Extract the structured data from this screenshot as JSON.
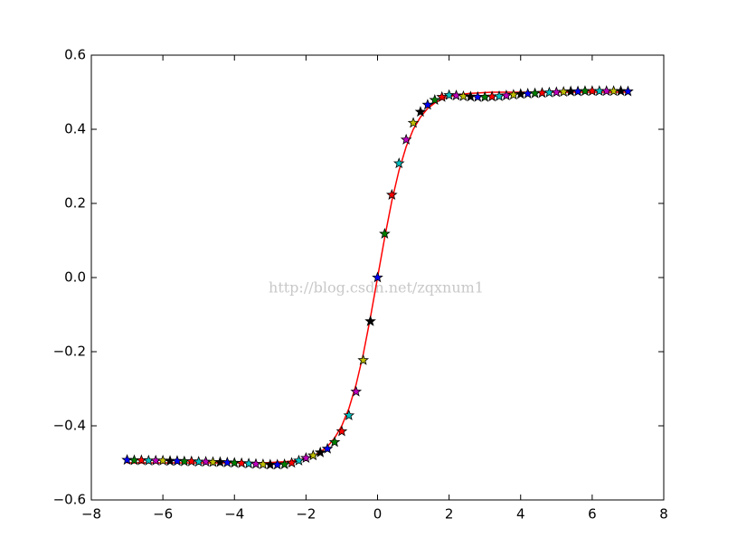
{
  "chart_data": {
    "type": "line",
    "watermark": "http://blog.csdn.net/zqxnum1",
    "x": [
      -7,
      -6.8,
      -6.6,
      -6.4,
      -6.2,
      -6,
      -5.8,
      -5.6,
      -5.4,
      -5.2,
      -5,
      -4.8,
      -4.6,
      -4.4,
      -4.2,
      -4,
      -3.8,
      -3.6,
      -3.4,
      -3.2,
      -3,
      -2.8,
      -2.6,
      -2.4,
      -2.2,
      -2,
      -1.8,
      -1.6,
      -1.4,
      -1.2,
      -1,
      -0.8,
      -0.6,
      -0.4,
      -0.2,
      0,
      0.2,
      0.4,
      0.6,
      0.8,
      1,
      1.2,
      1.4,
      1.6,
      1.8,
      2,
      2.2,
      2.4,
      2.6,
      2.8,
      3,
      3.2,
      3.4,
      3.6,
      3.8,
      4,
      4.2,
      4.4,
      4.6,
      4.8,
      5,
      5.2,
      5.4,
      5.6,
      5.8,
      6,
      6.2,
      6.4,
      6.6,
      6.8,
      7
    ],
    "series": [
      {
        "color": "#ff0000",
        "marker": "none",
        "values": [
          -0.5,
          -0.5,
          -0.5,
          -0.5,
          -0.5,
          -0.5,
          -0.5,
          -0.5,
          -0.5,
          -0.5,
          -0.5,
          -0.5,
          -0.5,
          -0.5,
          -0.5,
          -0.5,
          -0.5,
          -0.5,
          -0.5,
          -0.5,
          -0.499,
          -0.498,
          -0.497,
          -0.495,
          -0.492,
          -0.488,
          -0.481,
          -0.471,
          -0.456,
          -0.433,
          -0.4,
          -0.353,
          -0.289,
          -0.207,
          -0.108,
          0,
          0.108,
          0.207,
          0.289,
          0.353,
          0.4,
          0.433,
          0.456,
          0.471,
          0.481,
          0.488,
          0.492,
          0.495,
          0.497,
          0.498,
          0.499,
          0.5,
          0.5,
          0.5,
          0.5,
          0.5,
          0.5,
          0.5,
          0.5,
          0.5,
          0.5,
          0.5,
          0.5,
          0.5,
          0.5,
          0.5,
          0.5,
          0.5,
          0.5,
          0.5,
          0.5
        ]
      },
      {
        "marker": "star",
        "edgecolor": "#000000",
        "colors": [
          "#0000ff",
          "#008000",
          "#ff0000",
          "#00bfbf",
          "#bf00bf",
          "#bfbf00",
          "#000000"
        ],
        "values": [
          -0.492,
          -0.493,
          -0.493,
          -0.494,
          -0.494,
          -0.494,
          -0.495,
          -0.495,
          -0.496,
          -0.496,
          -0.497,
          -0.497,
          -0.498,
          -0.498,
          -0.499,
          -0.5,
          -0.501,
          -0.502,
          -0.503,
          -0.504,
          -0.505,
          -0.505,
          -0.504,
          -0.5,
          -0.494,
          -0.487,
          -0.48,
          -0.472,
          -0.462,
          -0.444,
          -0.415,
          -0.372,
          -0.308,
          -0.223,
          -0.118,
          0,
          0.118,
          0.223,
          0.308,
          0.372,
          0.417,
          0.447,
          0.466,
          0.479,
          0.487,
          0.492,
          0.491,
          0.489,
          0.488,
          0.487,
          0.487,
          0.488,
          0.489,
          0.491,
          0.493,
          0.495,
          0.496,
          0.497,
          0.498,
          0.499,
          0.5,
          0.501,
          0.502,
          0.502,
          0.503,
          0.503,
          0.503,
          0.503,
          0.503,
          0.503,
          0.502
        ]
      }
    ],
    "xlim": [
      -8,
      8
    ],
    "xticks": [
      {
        "value": -8,
        "label": "−8"
      },
      {
        "value": -6,
        "label": "−6"
      },
      {
        "value": -4,
        "label": "−4"
      },
      {
        "value": -2,
        "label": "−2"
      },
      0,
      2,
      4,
      6,
      8
    ],
    "ylim": [
      -0.6,
      0.6
    ],
    "yticks": [
      {
        "value": -0.6,
        "label": "−0.6"
      },
      {
        "value": -0.4,
        "label": "−0.4"
      },
      {
        "value": -0.2,
        "label": "−0.2"
      },
      {
        "value": 0,
        "label": "0.0"
      },
      0.2,
      0.4,
      0.6
    ],
    "grid": false
  }
}
